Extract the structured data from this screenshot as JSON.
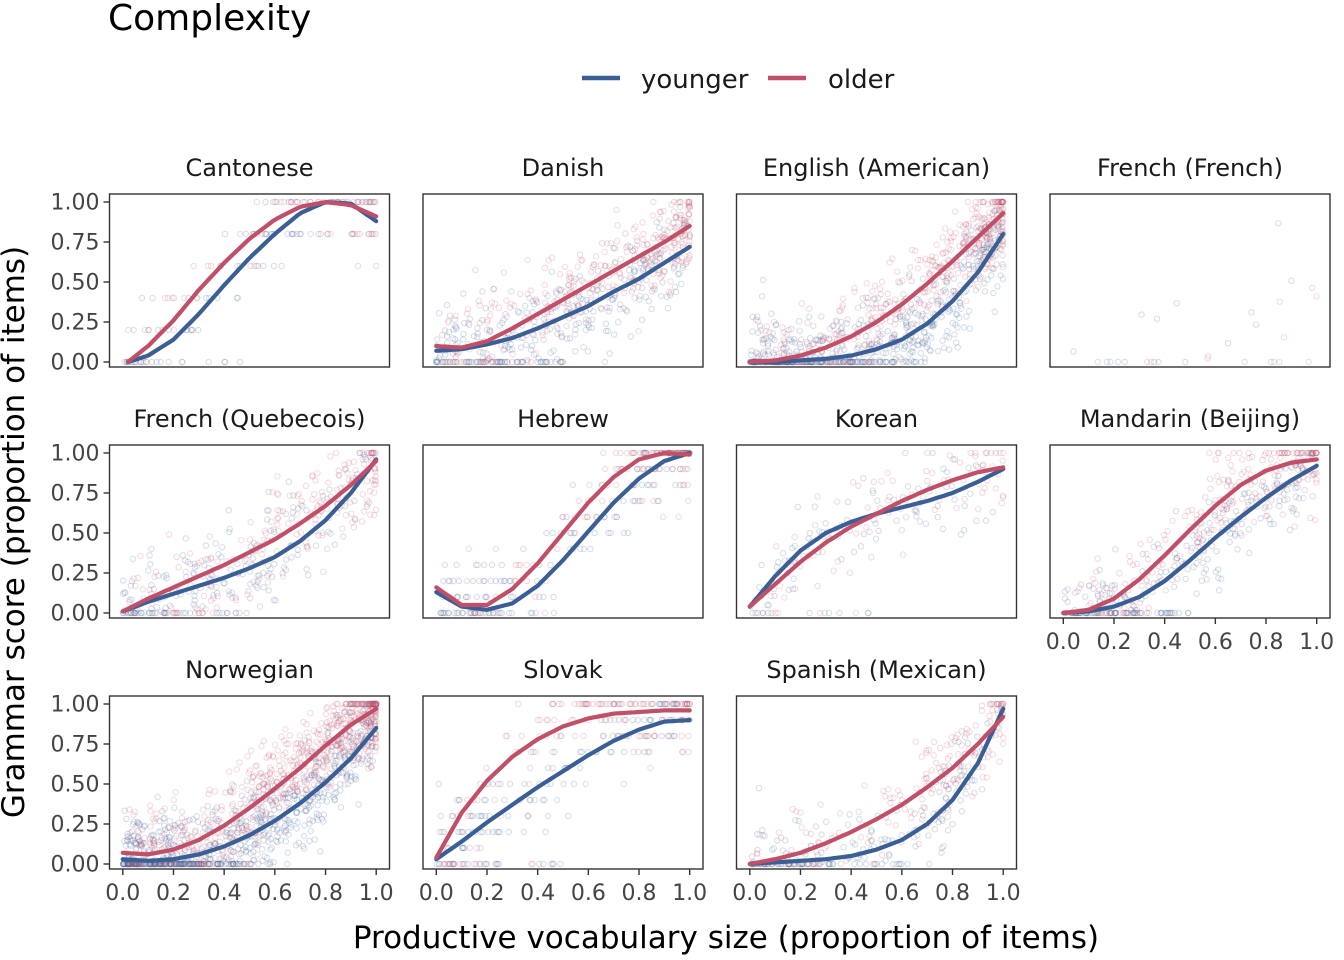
{
  "title": "Complexity",
  "colors": {
    "younger": "#3a5f96",
    "older": "#c14f68"
  },
  "chart_data": {
    "type": "scatter",
    "title": "Complexity",
    "xlabel": "Productive vocabulary size (proportion of items)",
    "ylabel": "Grammar score (proportion of items)",
    "xlim": [
      0,
      1
    ],
    "ylim": [
      0,
      1
    ],
    "x_ticks": [
      "0.0",
      "0.2",
      "0.4",
      "0.6",
      "0.8",
      "1.0"
    ],
    "y_ticks": [
      "0.00",
      "0.25",
      "0.50",
      "0.75",
      "1.00"
    ],
    "legend": {
      "position": "top",
      "entries": [
        "younger",
        "older"
      ]
    },
    "grid": false,
    "panels": [
      {
        "name": "Cantonese",
        "density": 160,
        "levels": 5,
        "ymid": 0.5,
        "series": [
          {
            "name": "younger",
            "x": [
              0.02,
              0.1,
              0.2,
              0.3,
              0.4,
              0.5,
              0.6,
              0.7,
              0.8,
              0.9,
              1.0
            ],
            "y": [
              0.0,
              0.04,
              0.14,
              0.3,
              0.48,
              0.65,
              0.8,
              0.93,
              1.0,
              0.99,
              0.88
            ]
          },
          {
            "name": "older",
            "x": [
              0.02,
              0.1,
              0.2,
              0.3,
              0.4,
              0.5,
              0.6,
              0.7,
              0.8,
              0.9,
              1.0
            ],
            "y": [
              0.0,
              0.1,
              0.26,
              0.45,
              0.62,
              0.77,
              0.89,
              0.97,
              1.0,
              0.98,
              0.91
            ]
          }
        ]
      },
      {
        "name": "Danish",
        "density": 650,
        "levels": 0,
        "ymid": 0.38,
        "series": [
          {
            "name": "younger",
            "x": [
              0.0,
              0.1,
              0.2,
              0.3,
              0.4,
              0.5,
              0.6,
              0.7,
              0.8,
              0.9,
              1.0
            ],
            "y": [
              0.07,
              0.08,
              0.11,
              0.15,
              0.21,
              0.28,
              0.35,
              0.44,
              0.52,
              0.62,
              0.72
            ]
          },
          {
            "name": "older",
            "x": [
              0.0,
              0.1,
              0.2,
              0.3,
              0.4,
              0.5,
              0.6,
              0.7,
              0.8,
              0.9,
              1.0
            ],
            "y": [
              0.1,
              0.09,
              0.13,
              0.21,
              0.3,
              0.39,
              0.48,
              0.57,
              0.66,
              0.75,
              0.85
            ]
          }
        ]
      },
      {
        "name": "English (American)",
        "density": 1000,
        "levels": 0,
        "ymid": 0.3,
        "series": [
          {
            "name": "younger",
            "x": [
              0.0,
              0.1,
              0.2,
              0.3,
              0.4,
              0.5,
              0.6,
              0.7,
              0.8,
              0.9,
              1.0
            ],
            "y": [
              0.0,
              0.0,
              0.01,
              0.02,
              0.04,
              0.08,
              0.14,
              0.24,
              0.38,
              0.56,
              0.8
            ]
          },
          {
            "name": "older",
            "x": [
              0.0,
              0.1,
              0.2,
              0.3,
              0.4,
              0.5,
              0.6,
              0.7,
              0.8,
              0.9,
              1.0
            ],
            "y": [
              0.0,
              0.01,
              0.04,
              0.09,
              0.16,
              0.25,
              0.36,
              0.49,
              0.63,
              0.78,
              0.93
            ]
          }
        ]
      },
      {
        "name": "French (French)",
        "density": 30,
        "levels": 0,
        "ymid": 0.3,
        "series": []
      },
      {
        "name": "French (Quebecois)",
        "density": 420,
        "levels": 0,
        "ymid": 0.4,
        "series": [
          {
            "name": "younger",
            "x": [
              0.0,
              0.1,
              0.2,
              0.3,
              0.4,
              0.5,
              0.6,
              0.7,
              0.8,
              0.9,
              1.0
            ],
            "y": [
              0.01,
              0.07,
              0.12,
              0.17,
              0.22,
              0.28,
              0.35,
              0.45,
              0.58,
              0.75,
              0.96
            ]
          },
          {
            "name": "older",
            "x": [
              0.0,
              0.1,
              0.2,
              0.3,
              0.4,
              0.5,
              0.6,
              0.7,
              0.8,
              0.9,
              1.0
            ],
            "y": [
              0.01,
              0.09,
              0.16,
              0.23,
              0.3,
              0.38,
              0.46,
              0.56,
              0.67,
              0.8,
              0.95
            ]
          }
        ]
      },
      {
        "name": "Hebrew",
        "density": 260,
        "levels": 10,
        "ymid": 0.5,
        "series": [
          {
            "name": "younger",
            "x": [
              0.0,
              0.1,
              0.2,
              0.3,
              0.4,
              0.5,
              0.6,
              0.7,
              0.8,
              0.9,
              1.0
            ],
            "y": [
              0.13,
              0.04,
              0.02,
              0.06,
              0.17,
              0.33,
              0.51,
              0.69,
              0.84,
              0.95,
              1.0
            ]
          },
          {
            "name": "older",
            "x": [
              0.0,
              0.1,
              0.2,
              0.3,
              0.4,
              0.5,
              0.6,
              0.7,
              0.8,
              0.9,
              1.0
            ],
            "y": [
              0.16,
              0.05,
              0.05,
              0.15,
              0.31,
              0.5,
              0.69,
              0.85,
              0.96,
              1.0,
              0.99
            ]
          }
        ]
      },
      {
        "name": "Korean",
        "density": 200,
        "levels": 0,
        "ymid": 0.5,
        "series": [
          {
            "name": "younger",
            "x": [
              0.0,
              0.1,
              0.2,
              0.3,
              0.4,
              0.5,
              0.6,
              0.7,
              0.8,
              0.9,
              1.0
            ],
            "y": [
              0.04,
              0.23,
              0.39,
              0.5,
              0.57,
              0.62,
              0.66,
              0.7,
              0.75,
              0.82,
              0.9
            ]
          },
          {
            "name": "older",
            "x": [
              0.0,
              0.1,
              0.2,
              0.3,
              0.4,
              0.5,
              0.6,
              0.7,
              0.8,
              0.9,
              1.0
            ],
            "y": [
              0.04,
              0.18,
              0.32,
              0.44,
              0.54,
              0.62,
              0.7,
              0.77,
              0.83,
              0.88,
              0.91
            ]
          }
        ]
      },
      {
        "name": "Mandarin (Beijing)",
        "density": 500,
        "levels": 0,
        "ymid": 0.55,
        "series": [
          {
            "name": "younger",
            "x": [
              0.0,
              0.1,
              0.2,
              0.3,
              0.4,
              0.5,
              0.6,
              0.7,
              0.8,
              0.9,
              1.0
            ],
            "y": [
              0.0,
              0.01,
              0.04,
              0.1,
              0.2,
              0.33,
              0.47,
              0.6,
              0.72,
              0.83,
              0.92
            ]
          },
          {
            "name": "older",
            "x": [
              0.0,
              0.1,
              0.2,
              0.3,
              0.4,
              0.5,
              0.6,
              0.7,
              0.8,
              0.9,
              1.0
            ],
            "y": [
              0.0,
              0.02,
              0.09,
              0.21,
              0.36,
              0.52,
              0.67,
              0.8,
              0.89,
              0.94,
              0.96
            ]
          }
        ]
      },
      {
        "name": "Norwegian",
        "density": 1400,
        "levels": 0,
        "ymid": 0.45,
        "series": [
          {
            "name": "younger",
            "x": [
              0.0,
              0.1,
              0.2,
              0.3,
              0.4,
              0.5,
              0.6,
              0.7,
              0.8,
              0.9,
              1.0
            ],
            "y": [
              0.03,
              0.02,
              0.03,
              0.06,
              0.11,
              0.18,
              0.27,
              0.38,
              0.51,
              0.66,
              0.85
            ]
          },
          {
            "name": "older",
            "x": [
              0.0,
              0.1,
              0.2,
              0.3,
              0.4,
              0.5,
              0.6,
              0.7,
              0.8,
              0.9,
              1.0
            ],
            "y": [
              0.07,
              0.06,
              0.09,
              0.15,
              0.24,
              0.35,
              0.47,
              0.6,
              0.74,
              0.87,
              0.97
            ]
          }
        ]
      },
      {
        "name": "Slovak",
        "density": 300,
        "levels": 10,
        "ymid": 0.6,
        "series": [
          {
            "name": "younger",
            "x": [
              0.0,
              0.1,
              0.2,
              0.3,
              0.4,
              0.5,
              0.6,
              0.7,
              0.8,
              0.9,
              1.0
            ],
            "y": [
              0.03,
              0.14,
              0.26,
              0.37,
              0.48,
              0.58,
              0.68,
              0.77,
              0.84,
              0.89,
              0.9
            ]
          },
          {
            "name": "older",
            "x": [
              0.0,
              0.1,
              0.2,
              0.3,
              0.4,
              0.5,
              0.6,
              0.7,
              0.8,
              0.9,
              1.0
            ],
            "y": [
              0.04,
              0.32,
              0.52,
              0.67,
              0.78,
              0.86,
              0.91,
              0.94,
              0.95,
              0.96,
              0.96
            ]
          }
        ]
      },
      {
        "name": "Spanish (Mexican)",
        "density": 380,
        "levels": 0,
        "ymid": 0.35,
        "series": [
          {
            "name": "younger",
            "x": [
              0.0,
              0.1,
              0.2,
              0.3,
              0.4,
              0.5,
              0.6,
              0.7,
              0.8,
              0.9,
              1.0
            ],
            "y": [
              0.0,
              0.01,
              0.02,
              0.03,
              0.05,
              0.09,
              0.15,
              0.25,
              0.4,
              0.63,
              0.97
            ]
          },
          {
            "name": "older",
            "x": [
              0.0,
              0.1,
              0.2,
              0.3,
              0.4,
              0.5,
              0.6,
              0.7,
              0.8,
              0.9,
              1.0
            ],
            "y": [
              0.0,
              0.03,
              0.07,
              0.13,
              0.2,
              0.28,
              0.37,
              0.48,
              0.6,
              0.75,
              0.92
            ]
          }
        ]
      }
    ]
  }
}
